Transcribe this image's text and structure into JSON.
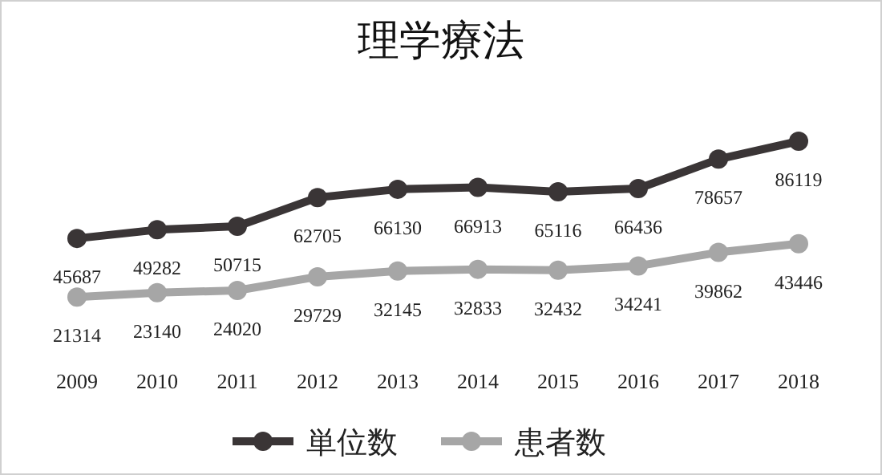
{
  "chart_data": {
    "type": "line",
    "title": "理学療法",
    "categories": [
      "2009",
      "2010",
      "2011",
      "2012",
      "2013",
      "2014",
      "2015",
      "2016",
      "2017",
      "2018"
    ],
    "series": [
      {
        "name": "単位数",
        "color": "#3a3536",
        "values": [
          45687,
          49282,
          50715,
          62705,
          66130,
          66913,
          65116,
          66436,
          78657,
          86119
        ]
      },
      {
        "name": "患者数",
        "color": "#a6a6a6",
        "values": [
          21314,
          23140,
          24020,
          29729,
          32145,
          32833,
          32432,
          34241,
          39862,
          43446
        ]
      }
    ],
    "data_labels": true,
    "marker": "circle",
    "legend": "bottom",
    "grid": false
  }
}
